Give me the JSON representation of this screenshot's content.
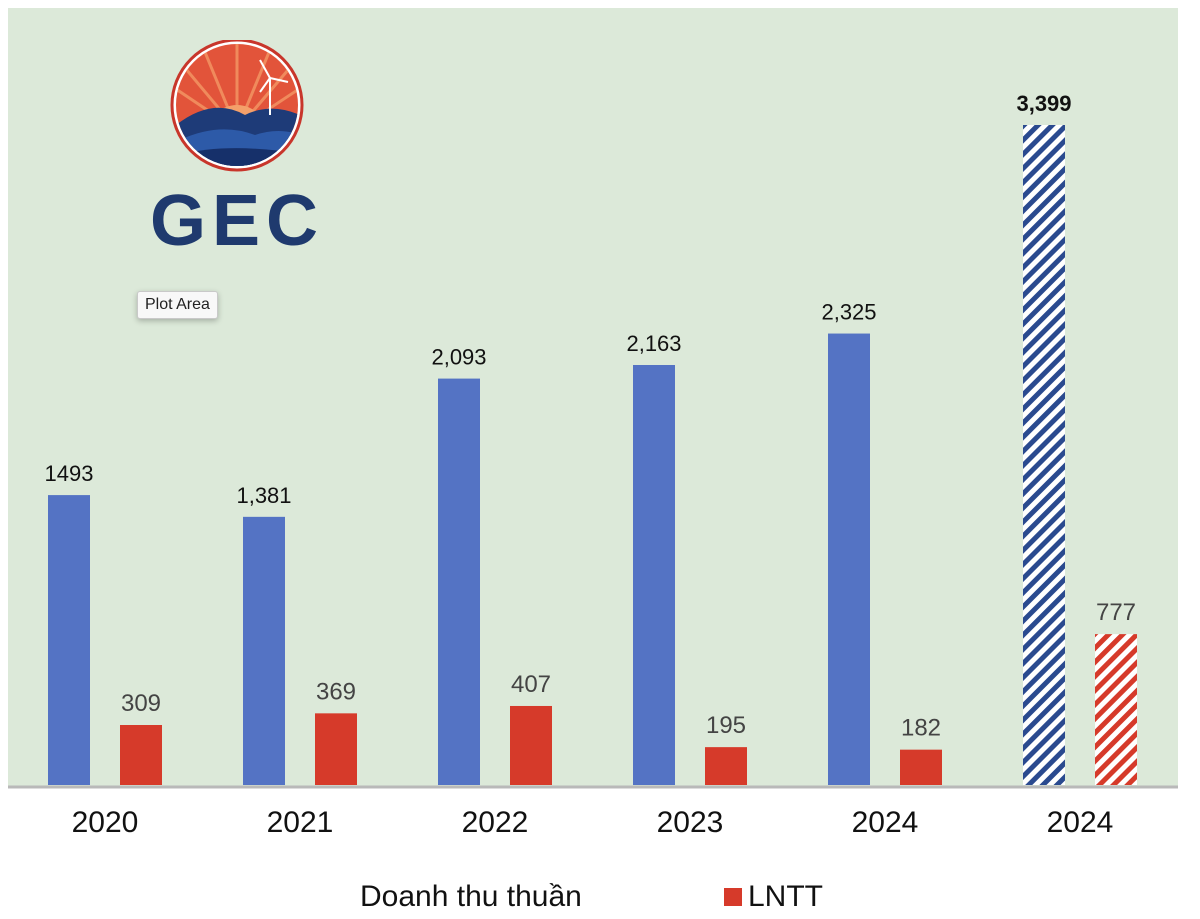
{
  "logo": {
    "text": "GEC"
  },
  "tooltip": {
    "text": "Plot Area"
  },
  "colors": {
    "blue": "#5473c4",
    "red": "#d63a2a",
    "plot_bg": "#dce9d9",
    "axis": "#b9b9b9"
  },
  "chart_data": {
    "type": "bar",
    "categories": [
      "2020",
      "2021",
      "2022",
      "2023",
      "2024",
      "2024"
    ],
    "series": [
      {
        "name": "Doanh thu thuần",
        "values": [
          1493,
          1381,
          2093,
          2163,
          2325,
          3399
        ],
        "labels": [
          "1493",
          "1,381",
          "2,093",
          "2,163",
          "2,325",
          "3,399"
        ],
        "color": "#5473c4"
      },
      {
        "name": "LNTT",
        "values": [
          309,
          369,
          407,
          195,
          182,
          777
        ],
        "labels": [
          "309",
          "369",
          "407",
          "195",
          "182",
          "777"
        ],
        "color": "#d63a2a"
      }
    ],
    "hatched_categories": [
      5
    ],
    "ylim": [
      0,
      3500
    ],
    "grid": false,
    "legend_position": "bottom"
  },
  "legend": {
    "revenue_label": "Doanh thu thuần",
    "profit_label": "LNTT"
  }
}
